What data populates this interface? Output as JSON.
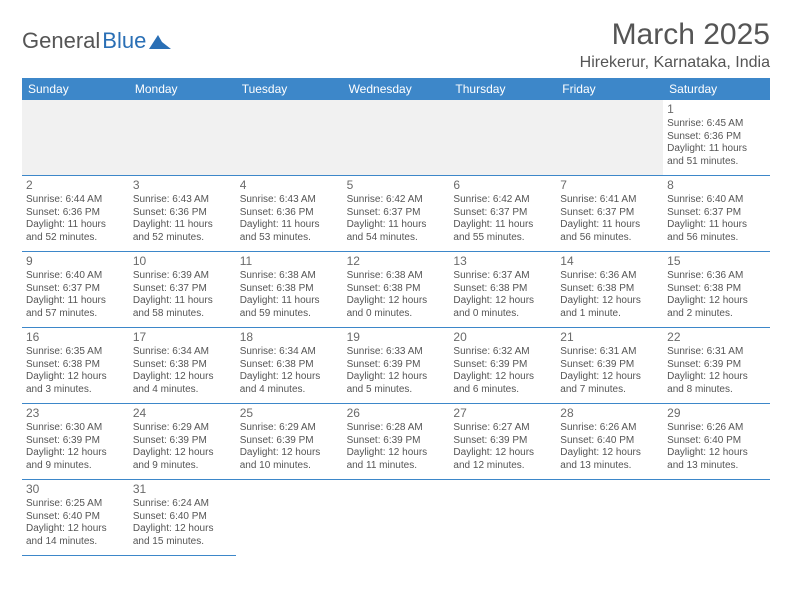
{
  "logo": {
    "first": "General",
    "second": "Blue"
  },
  "title": "March 2025",
  "location": "Hirekerur, Karnataka, India",
  "dayHeaders": [
    "Sunday",
    "Monday",
    "Tuesday",
    "Wednesday",
    "Thursday",
    "Friday",
    "Saturday"
  ],
  "colors": {
    "headerBg": "#3d87c9",
    "headerText": "#ffffff",
    "blankBg": "#f1f1f1",
    "borderColor": "#3d87c9",
    "textColor": "#555555",
    "logoBlue": "#2a6fb5"
  },
  "leadingBlanks": 6,
  "trailingBlanks": 5,
  "days": [
    {
      "n": "1",
      "sunrise": "Sunrise: 6:45 AM",
      "sunset": "Sunset: 6:36 PM",
      "daylight": "Daylight: 11 hours and 51 minutes."
    },
    {
      "n": "2",
      "sunrise": "Sunrise: 6:44 AM",
      "sunset": "Sunset: 6:36 PM",
      "daylight": "Daylight: 11 hours and 52 minutes."
    },
    {
      "n": "3",
      "sunrise": "Sunrise: 6:43 AM",
      "sunset": "Sunset: 6:36 PM",
      "daylight": "Daylight: 11 hours and 52 minutes."
    },
    {
      "n": "4",
      "sunrise": "Sunrise: 6:43 AM",
      "sunset": "Sunset: 6:36 PM",
      "daylight": "Daylight: 11 hours and 53 minutes."
    },
    {
      "n": "5",
      "sunrise": "Sunrise: 6:42 AM",
      "sunset": "Sunset: 6:37 PM",
      "daylight": "Daylight: 11 hours and 54 minutes."
    },
    {
      "n": "6",
      "sunrise": "Sunrise: 6:42 AM",
      "sunset": "Sunset: 6:37 PM",
      "daylight": "Daylight: 11 hours and 55 minutes."
    },
    {
      "n": "7",
      "sunrise": "Sunrise: 6:41 AM",
      "sunset": "Sunset: 6:37 PM",
      "daylight": "Daylight: 11 hours and 56 minutes."
    },
    {
      "n": "8",
      "sunrise": "Sunrise: 6:40 AM",
      "sunset": "Sunset: 6:37 PM",
      "daylight": "Daylight: 11 hours and 56 minutes."
    },
    {
      "n": "9",
      "sunrise": "Sunrise: 6:40 AM",
      "sunset": "Sunset: 6:37 PM",
      "daylight": "Daylight: 11 hours and 57 minutes."
    },
    {
      "n": "10",
      "sunrise": "Sunrise: 6:39 AM",
      "sunset": "Sunset: 6:37 PM",
      "daylight": "Daylight: 11 hours and 58 minutes."
    },
    {
      "n": "11",
      "sunrise": "Sunrise: 6:38 AM",
      "sunset": "Sunset: 6:38 PM",
      "daylight": "Daylight: 11 hours and 59 minutes."
    },
    {
      "n": "12",
      "sunrise": "Sunrise: 6:38 AM",
      "sunset": "Sunset: 6:38 PM",
      "daylight": "Daylight: 12 hours and 0 minutes."
    },
    {
      "n": "13",
      "sunrise": "Sunrise: 6:37 AM",
      "sunset": "Sunset: 6:38 PM",
      "daylight": "Daylight: 12 hours and 0 minutes."
    },
    {
      "n": "14",
      "sunrise": "Sunrise: 6:36 AM",
      "sunset": "Sunset: 6:38 PM",
      "daylight": "Daylight: 12 hours and 1 minute."
    },
    {
      "n": "15",
      "sunrise": "Sunrise: 6:36 AM",
      "sunset": "Sunset: 6:38 PM",
      "daylight": "Daylight: 12 hours and 2 minutes."
    },
    {
      "n": "16",
      "sunrise": "Sunrise: 6:35 AM",
      "sunset": "Sunset: 6:38 PM",
      "daylight": "Daylight: 12 hours and 3 minutes."
    },
    {
      "n": "17",
      "sunrise": "Sunrise: 6:34 AM",
      "sunset": "Sunset: 6:38 PM",
      "daylight": "Daylight: 12 hours and 4 minutes."
    },
    {
      "n": "18",
      "sunrise": "Sunrise: 6:34 AM",
      "sunset": "Sunset: 6:38 PM",
      "daylight": "Daylight: 12 hours and 4 minutes."
    },
    {
      "n": "19",
      "sunrise": "Sunrise: 6:33 AM",
      "sunset": "Sunset: 6:39 PM",
      "daylight": "Daylight: 12 hours and 5 minutes."
    },
    {
      "n": "20",
      "sunrise": "Sunrise: 6:32 AM",
      "sunset": "Sunset: 6:39 PM",
      "daylight": "Daylight: 12 hours and 6 minutes."
    },
    {
      "n": "21",
      "sunrise": "Sunrise: 6:31 AM",
      "sunset": "Sunset: 6:39 PM",
      "daylight": "Daylight: 12 hours and 7 minutes."
    },
    {
      "n": "22",
      "sunrise": "Sunrise: 6:31 AM",
      "sunset": "Sunset: 6:39 PM",
      "daylight": "Daylight: 12 hours and 8 minutes."
    },
    {
      "n": "23",
      "sunrise": "Sunrise: 6:30 AM",
      "sunset": "Sunset: 6:39 PM",
      "daylight": "Daylight: 12 hours and 9 minutes."
    },
    {
      "n": "24",
      "sunrise": "Sunrise: 6:29 AM",
      "sunset": "Sunset: 6:39 PM",
      "daylight": "Daylight: 12 hours and 9 minutes."
    },
    {
      "n": "25",
      "sunrise": "Sunrise: 6:29 AM",
      "sunset": "Sunset: 6:39 PM",
      "daylight": "Daylight: 12 hours and 10 minutes."
    },
    {
      "n": "26",
      "sunrise": "Sunrise: 6:28 AM",
      "sunset": "Sunset: 6:39 PM",
      "daylight": "Daylight: 12 hours and 11 minutes."
    },
    {
      "n": "27",
      "sunrise": "Sunrise: 6:27 AM",
      "sunset": "Sunset: 6:39 PM",
      "daylight": "Daylight: 12 hours and 12 minutes."
    },
    {
      "n": "28",
      "sunrise": "Sunrise: 6:26 AM",
      "sunset": "Sunset: 6:40 PM",
      "daylight": "Daylight: 12 hours and 13 minutes."
    },
    {
      "n": "29",
      "sunrise": "Sunrise: 6:26 AM",
      "sunset": "Sunset: 6:40 PM",
      "daylight": "Daylight: 12 hours and 13 minutes."
    },
    {
      "n": "30",
      "sunrise": "Sunrise: 6:25 AM",
      "sunset": "Sunset: 6:40 PM",
      "daylight": "Daylight: 12 hours and 14 minutes."
    },
    {
      "n": "31",
      "sunrise": "Sunrise: 6:24 AM",
      "sunset": "Sunset: 6:40 PM",
      "daylight": "Daylight: 12 hours and 15 minutes."
    }
  ]
}
